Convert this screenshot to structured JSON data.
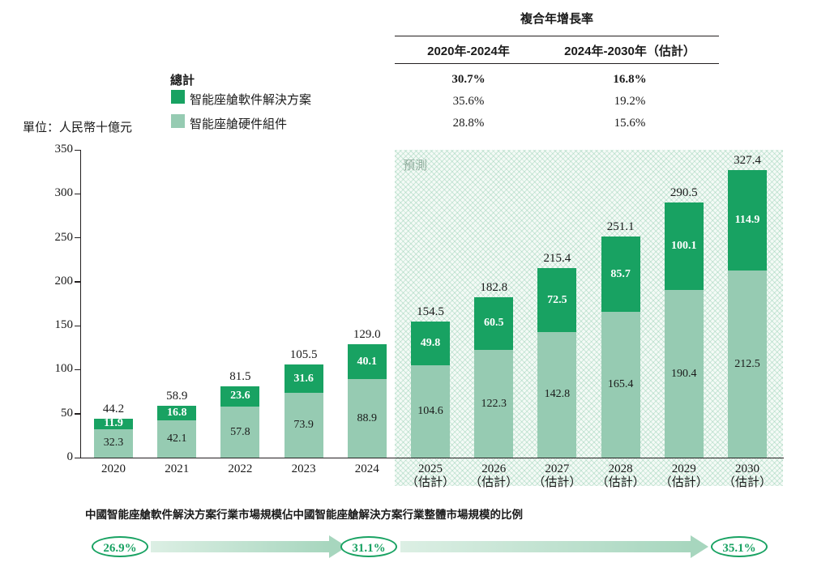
{
  "colors": {
    "software": "#18A262",
    "hardware": "#96CBB2",
    "accent": "#18A262",
    "axis": "#231f20",
    "band_light": "#DCEFE4",
    "band_dark": "#A7D6BE"
  },
  "unit_label": "單位：人民幣十億元",
  "cagr_table": {
    "title": "複合年增長率",
    "col1": "2020年-2024年",
    "col2": "2024年-2030年（估計）",
    "rows": [
      {
        "v1": "30.7%",
        "v2": "16.8%",
        "bold": true
      },
      {
        "v1": "35.6%",
        "v2": "19.2%",
        "bold": false
      },
      {
        "v1": "28.8%",
        "v2": "15.6%",
        "bold": false
      }
    ]
  },
  "legend": {
    "total_label": "總計",
    "software_label": "智能座艙軟件解決方案",
    "hardware_label": "智能座艙硬件組件"
  },
  "forecast_label": "預測",
  "chart_data": {
    "type": "bar",
    "stacked": true,
    "title": "",
    "ylabel": "人民幣十億元",
    "ylim": [
      0,
      350
    ],
    "yticks": [
      0,
      50,
      100,
      150,
      200,
      250,
      300,
      350
    ],
    "categories": [
      {
        "year": "2020",
        "note": ""
      },
      {
        "year": "2021",
        "note": ""
      },
      {
        "year": "2022",
        "note": ""
      },
      {
        "year": "2023",
        "note": ""
      },
      {
        "year": "2024",
        "note": ""
      },
      {
        "year": "2025",
        "note": "（估計）"
      },
      {
        "year": "2026",
        "note": "（估計）"
      },
      {
        "year": "2027",
        "note": "（估計）"
      },
      {
        "year": "2028",
        "note": "（估計）"
      },
      {
        "year": "2029",
        "note": "（估計）"
      },
      {
        "year": "2030",
        "note": "（估計）"
      }
    ],
    "forecast_from_index": 5,
    "series": [
      {
        "name": "智能座艙硬件組件",
        "color": "#96CBB2",
        "values": [
          32.3,
          42.1,
          57.8,
          73.9,
          88.9,
          104.6,
          122.3,
          142.8,
          165.4,
          190.4,
          212.5
        ],
        "labels": [
          "32.3",
          "42.1",
          "57.8",
          "73.9",
          "88.9",
          "104.6",
          "122.3",
          "142.8",
          "165.4",
          "190.4",
          "212.5"
        ]
      },
      {
        "name": "智能座艙軟件解決方案",
        "color": "#18A262",
        "values": [
          11.9,
          16.8,
          23.6,
          31.6,
          40.1,
          49.8,
          60.5,
          72.5,
          85.7,
          100.1,
          114.9
        ],
        "labels": [
          "11.9",
          "16.8",
          "23.6",
          "31.6",
          "40.1",
          "49.8",
          "60.5",
          "72.5",
          "85.7",
          "100.1",
          "114.9"
        ]
      }
    ],
    "totals": [
      44.2,
      58.9,
      81.5,
      105.5,
      129.0,
      154.5,
      182.8,
      215.4,
      251.1,
      290.5,
      327.4
    ],
    "totals_labels": [
      "44.2",
      "58.9",
      "81.5",
      "105.5",
      "129.0",
      "154.5",
      "182.8",
      "215.4",
      "251.1",
      "290.5",
      "327.4"
    ]
  },
  "footer": {
    "caption": "中國智能座艙軟件解決方案行業市場規模佔中國智能座艙解決方案行業整體市場規模的比例",
    "ratios": [
      "26.9%",
      "31.1%",
      "35.1%"
    ]
  }
}
